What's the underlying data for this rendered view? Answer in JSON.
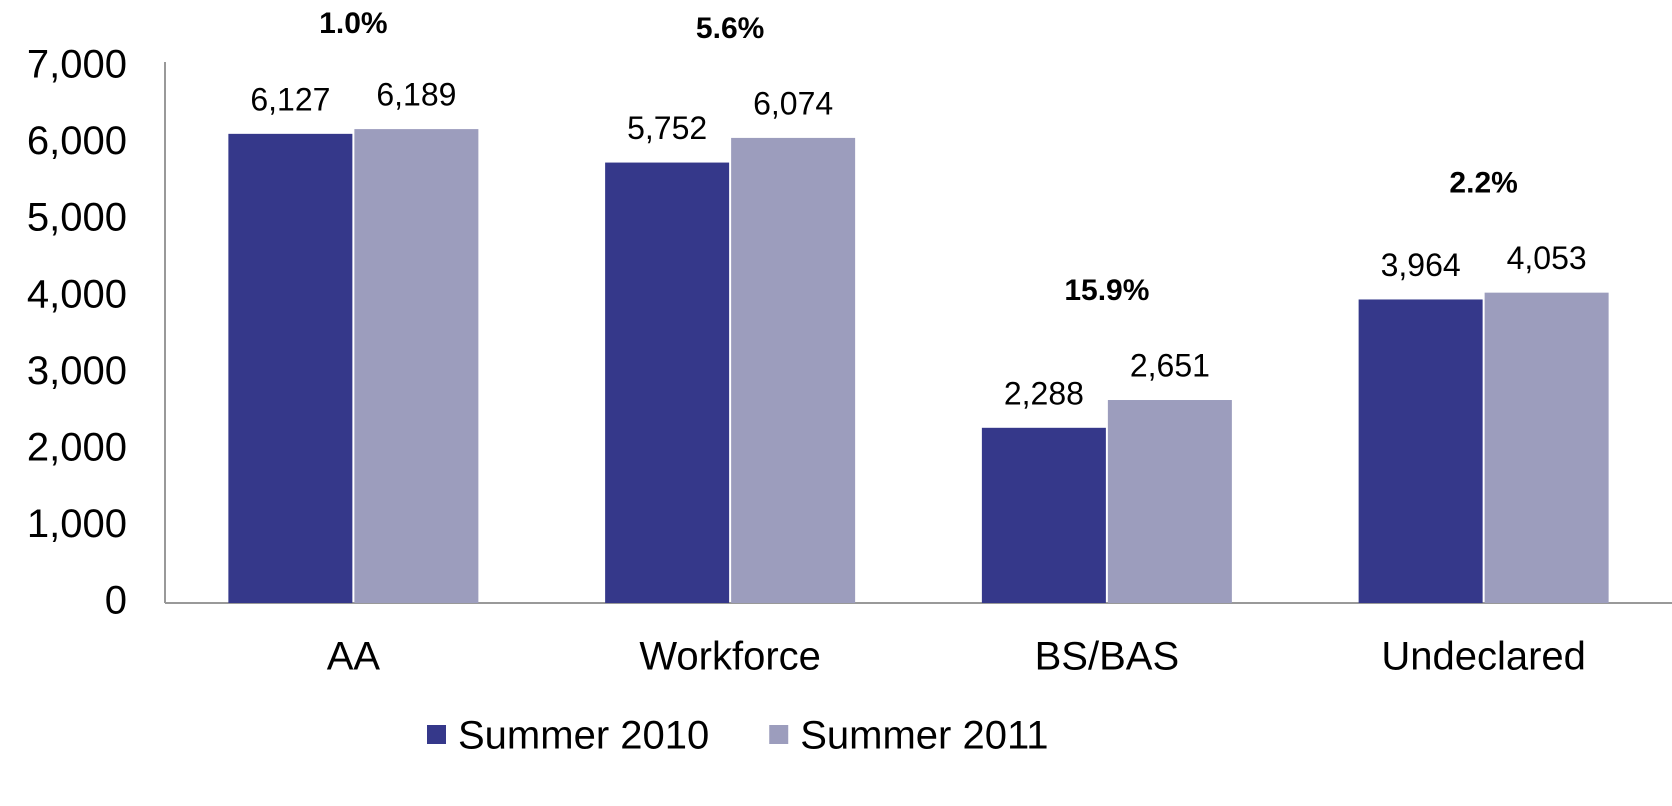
{
  "chart_data": {
    "type": "bar",
    "categories": [
      "AA",
      "Workforce",
      "BS/BAS",
      "Undeclared"
    ],
    "series": [
      {
        "name": "Summer 2010",
        "color": "#35388a",
        "values": [
          6127,
          5752,
          2288,
          3964
        ],
        "value_labels": [
          "6,127",
          "5,752",
          "2,288",
          "3,964"
        ]
      },
      {
        "name": "Summer 2011",
        "color": "#9c9dbd",
        "values": [
          6189,
          6074,
          2651,
          4053
        ],
        "value_labels": [
          "6,189",
          "6,074",
          "2,651",
          "4,053"
        ]
      }
    ],
    "annotations": [
      "1.0%",
      "5.6%",
      "15.9%",
      "2.2%"
    ],
    "ylim": [
      0,
      7000
    ],
    "yticks": [
      0,
      {
        "value": 1000,
        "label": "1,000"
      },
      {
        "value": 2000,
        "label": "2,000"
      },
      {
        "value": 3000,
        "label": "3,000"
      },
      {
        "value": 4000,
        "label": "4,000"
      },
      {
        "value": 5000,
        "label": "5,000"
      },
      {
        "value": 6000,
        "label": "6,000"
      },
      {
        "value": 7000,
        "label": "7,000"
      }
    ],
    "grid": false,
    "legend": "bottom"
  }
}
